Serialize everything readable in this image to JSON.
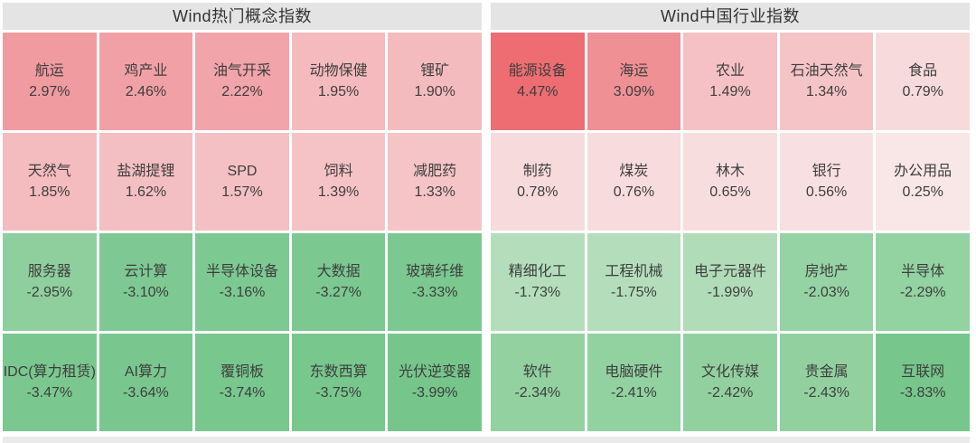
{
  "page": {
    "background": "#ffffff",
    "header_bg": "#e4e4e4",
    "header_text_color": "#333333",
    "cell_text_color": "#3e3e3e",
    "bottom_bar_color": "#eaeaea",
    "up_color_strong": "#ed6d72",
    "down_color_strong": "#76c68b"
  },
  "tables": [
    {
      "title": "Wind热门概念指数",
      "cells": [
        {
          "name": "航运",
          "change": "2.97%",
          "color": "#f09ba0"
        },
        {
          "name": "鸡产业",
          "change": "2.46%",
          "color": "#f1a1a6"
        },
        {
          "name": "油气开采",
          "change": "2.22%",
          "color": "#f1a4a9"
        },
        {
          "name": "动物保健",
          "change": "1.95%",
          "color": "#f4babd"
        },
        {
          "name": "锂矿",
          "change": "1.90%",
          "color": "#f4bbbe"
        },
        {
          "name": "天然气",
          "change": "1.85%",
          "color": "#f4bcbf"
        },
        {
          "name": "盐湖提锂",
          "change": "1.62%",
          "color": "#f4bfc2"
        },
        {
          "name": "SPD",
          "change": "1.57%",
          "color": "#f4c0c3"
        },
        {
          "name": "饲料",
          "change": "1.39%",
          "color": "#f5c3c6"
        },
        {
          "name": "减肥药",
          "change": "1.33%",
          "color": "#f5c4c7"
        },
        {
          "name": "服务器",
          "change": "-2.95%",
          "color": "#8fcf9d"
        },
        {
          "name": "云计算",
          "change": "-3.10%",
          "color": "#7ec993"
        },
        {
          "name": "半导体设备",
          "change": "-3.16%",
          "color": "#7dc992"
        },
        {
          "name": "大数据",
          "change": "-3.27%",
          "color": "#7cc891"
        },
        {
          "name": "玻璃纤维",
          "change": "-3.33%",
          "color": "#7bc890"
        },
        {
          "name": "IDC(算力租赁)",
          "change": "-3.47%",
          "color": "#7ac88f"
        },
        {
          "name": "AI算力",
          "change": "-3.64%",
          "color": "#79c78e"
        },
        {
          "name": "覆铜板",
          "change": "-3.74%",
          "color": "#78c78d"
        },
        {
          "name": "东数西算",
          "change": "-3.75%",
          "color": "#78c78d"
        },
        {
          "name": "光伏逆变器",
          "change": "-3.99%",
          "color": "#76c68b"
        }
      ]
    },
    {
      "title": "Wind中国行业指数",
      "cells": [
        {
          "name": "能源设备",
          "change": "4.47%",
          "color": "#ed6d72"
        },
        {
          "name": "海运",
          "change": "3.09%",
          "color": "#ef9095"
        },
        {
          "name": "农业",
          "change": "1.49%",
          "color": "#f5c1c4"
        },
        {
          "name": "石油天然气",
          "change": "1.34%",
          "color": "#f5c4c7"
        },
        {
          "name": "食品",
          "change": "0.79%",
          "color": "#f7dadc"
        },
        {
          "name": "制药",
          "change": "0.78%",
          "color": "#f7dadc"
        },
        {
          "name": "煤炭",
          "change": "0.76%",
          "color": "#f7dbdd"
        },
        {
          "name": "林木",
          "change": "0.65%",
          "color": "#f8dddf"
        },
        {
          "name": "银行",
          "change": "0.56%",
          "color": "#f8dfe1"
        },
        {
          "name": "办公用品",
          "change": "0.25%",
          "color": "#f9e6e7"
        },
        {
          "name": "精细化工",
          "change": "-1.73%",
          "color": "#b4debb"
        },
        {
          "name": "工程机械",
          "change": "-1.75%",
          "color": "#b4debb"
        },
        {
          "name": "电子元器件",
          "change": "-1.99%",
          "color": "#b1dcb8"
        },
        {
          "name": "房地产",
          "change": "-2.03%",
          "color": "#96d3a4"
        },
        {
          "name": "半导体",
          "change": "-2.29%",
          "color": "#93d2a1"
        },
        {
          "name": "软件",
          "change": "-2.34%",
          "color": "#93d1a0"
        },
        {
          "name": "电脑硬件",
          "change": "-2.41%",
          "color": "#92d1a0"
        },
        {
          "name": "文化传媒",
          "change": "-2.42%",
          "color": "#92d19f"
        },
        {
          "name": "贵金属",
          "change": "-2.43%",
          "color": "#92d19f"
        },
        {
          "name": "互联网",
          "change": "-3.83%",
          "color": "#77c68c"
        }
      ]
    }
  ],
  "chart_data": [
    {
      "type": "heatmap",
      "title": "Wind热门概念指数",
      "layout": "5 columns x 4 rows, sorted descending; red = gain, green = loss",
      "unit": "%",
      "categories": [
        "航运",
        "鸡产业",
        "油气开采",
        "动物保健",
        "锂矿",
        "天然气",
        "盐湖提锂",
        "SPD",
        "饲料",
        "减肥药",
        "服务器",
        "云计算",
        "半导体设备",
        "大数据",
        "玻璃纤维",
        "IDC(算力租赁)",
        "AI算力",
        "覆铜板",
        "东数西算",
        "光伏逆变器"
      ],
      "values": [
        2.97,
        2.46,
        2.22,
        1.95,
        1.9,
        1.85,
        1.62,
        1.57,
        1.39,
        1.33,
        -2.95,
        -3.1,
        -3.16,
        -3.27,
        -3.33,
        -3.47,
        -3.64,
        -3.74,
        -3.75,
        -3.99
      ]
    },
    {
      "type": "heatmap",
      "title": "Wind中国行业指数",
      "layout": "5 columns x 4 rows, sorted descending; red = gain, green = loss",
      "unit": "%",
      "categories": [
        "能源设备",
        "海运",
        "农业",
        "石油天然气",
        "食品",
        "制药",
        "煤炭",
        "林木",
        "银行",
        "办公用品",
        "精细化工",
        "工程机械",
        "电子元器件",
        "房地产",
        "半导体",
        "软件",
        "电脑硬件",
        "文化传媒",
        "贵金属",
        "互联网"
      ],
      "values": [
        4.47,
        3.09,
        1.49,
        1.34,
        0.79,
        0.78,
        0.76,
        0.65,
        0.56,
        0.25,
        -1.73,
        -1.75,
        -1.99,
        -2.03,
        -2.29,
        -2.34,
        -2.41,
        -2.42,
        -2.43,
        -3.83
      ]
    }
  ]
}
